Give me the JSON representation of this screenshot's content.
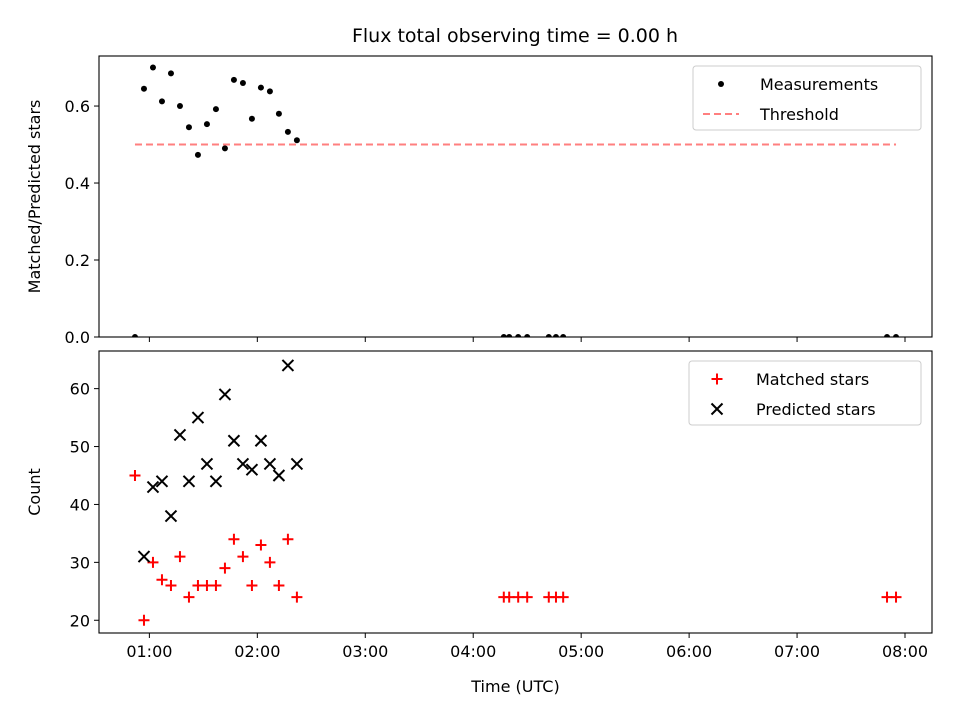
{
  "title": "Flux total observing time = 0.00 h",
  "chart_data": [
    {
      "type": "scatter",
      "ylabel": "Matched/Predicted stars",
      "xlim": [
        "00:32",
        "08:15"
      ],
      "ylim": [
        0,
        0.73
      ],
      "yticks": [
        {
          "value": 0.0,
          "label": "0.0"
        },
        {
          "value": 0.2,
          "label": "0.2"
        },
        {
          "value": 0.4,
          "label": "0.4"
        },
        {
          "value": 0.6,
          "label": "0.6"
        }
      ],
      "legend_position": "top-right",
      "series": [
        {
          "name": "Measurements",
          "marker": "dot",
          "color": "#000000",
          "points": [
            [
              "00:52",
              0.0
            ],
            [
              "00:57",
              0.645
            ],
            [
              "01:02",
              0.7
            ],
            [
              "01:07",
              0.612
            ],
            [
              "01:12",
              0.685
            ],
            [
              "01:17",
              0.6
            ],
            [
              "01:22",
              0.545
            ],
            [
              "01:27",
              0.473
            ],
            [
              "01:32",
              0.553
            ],
            [
              "01:37",
              0.592
            ],
            [
              "01:42",
              0.49
            ],
            [
              "01:47",
              0.668
            ],
            [
              "01:52",
              0.66
            ],
            [
              "01:57",
              0.567
            ],
            [
              "02:02",
              0.648
            ],
            [
              "02:07",
              0.638
            ],
            [
              "02:12",
              0.58
            ],
            [
              "02:17",
              0.533
            ],
            [
              "02:22",
              0.511
            ],
            [
              "04:17",
              0.0
            ],
            [
              "04:20",
              0.0
            ],
            [
              "04:25",
              0.0
            ],
            [
              "04:30",
              0.0
            ],
            [
              "04:42",
              0.0
            ],
            [
              "04:46",
              0.0
            ],
            [
              "04:50",
              0.0
            ],
            [
              "07:50",
              0.0
            ],
            [
              "07:55",
              0.0
            ]
          ]
        },
        {
          "name": "Threshold",
          "type": "line",
          "dashed": true,
          "color": "#ff7f7f",
          "points": [
            [
              "00:52",
              0.5
            ],
            [
              "07:55",
              0.5
            ]
          ]
        }
      ]
    },
    {
      "type": "scatter",
      "xlabel": "Time (UTC)",
      "ylabel": "Count",
      "xlim": [
        "00:32",
        "08:15"
      ],
      "ylim": [
        17.8,
        66.5
      ],
      "yticks": [
        {
          "value": 20,
          "label": "20"
        },
        {
          "value": 30,
          "label": "30"
        },
        {
          "value": 40,
          "label": "40"
        },
        {
          "value": 50,
          "label": "50"
        },
        {
          "value": 60,
          "label": "60"
        }
      ],
      "xticks": [
        {
          "value": "01:00",
          "label": "01:00"
        },
        {
          "value": "02:00",
          "label": "02:00"
        },
        {
          "value": "03:00",
          "label": "03:00"
        },
        {
          "value": "04:00",
          "label": "04:00"
        },
        {
          "value": "05:00",
          "label": "05:00"
        },
        {
          "value": "06:00",
          "label": "06:00"
        },
        {
          "value": "07:00",
          "label": "07:00"
        },
        {
          "value": "08:00",
          "label": "08:00"
        }
      ],
      "legend_position": "top-right",
      "series": [
        {
          "name": "Matched stars",
          "marker": "plus",
          "color": "#ff0000",
          "points": [
            [
              "00:52",
              45
            ],
            [
              "00:57",
              20
            ],
            [
              "01:02",
              30
            ],
            [
              "01:07",
              27
            ],
            [
              "01:12",
              26
            ],
            [
              "01:17",
              31
            ],
            [
              "01:22",
              24
            ],
            [
              "01:27",
              26
            ],
            [
              "01:32",
              26
            ],
            [
              "01:37",
              26
            ],
            [
              "01:42",
              29
            ],
            [
              "01:47",
              34
            ],
            [
              "01:52",
              31
            ],
            [
              "01:57",
              26
            ],
            [
              "02:02",
              33
            ],
            [
              "02:07",
              30
            ],
            [
              "02:12",
              26
            ],
            [
              "02:17",
              34
            ],
            [
              "02:22",
              24
            ],
            [
              "04:17",
              24
            ],
            [
              "04:20",
              24
            ],
            [
              "04:25",
              24
            ],
            [
              "04:30",
              24
            ],
            [
              "04:42",
              24
            ],
            [
              "04:46",
              24
            ],
            [
              "04:50",
              24
            ],
            [
              "07:50",
              24
            ],
            [
              "07:55",
              24
            ]
          ]
        },
        {
          "name": "Predicted stars",
          "marker": "x",
          "color": "#000000",
          "points": [
            [
              "00:57",
              31
            ],
            [
              "01:02",
              43
            ],
            [
              "01:07",
              44
            ],
            [
              "01:12",
              38
            ],
            [
              "01:17",
              52
            ],
            [
              "01:22",
              44
            ],
            [
              "01:27",
              55
            ],
            [
              "01:32",
              47
            ],
            [
              "01:37",
              44
            ],
            [
              "01:42",
              59
            ],
            [
              "01:47",
              51
            ],
            [
              "01:52",
              47
            ],
            [
              "01:57",
              46
            ],
            [
              "02:02",
              51
            ],
            [
              "02:07",
              47
            ],
            [
              "02:12",
              45
            ],
            [
              "02:17",
              64
            ],
            [
              "02:22",
              47
            ]
          ]
        }
      ]
    }
  ]
}
